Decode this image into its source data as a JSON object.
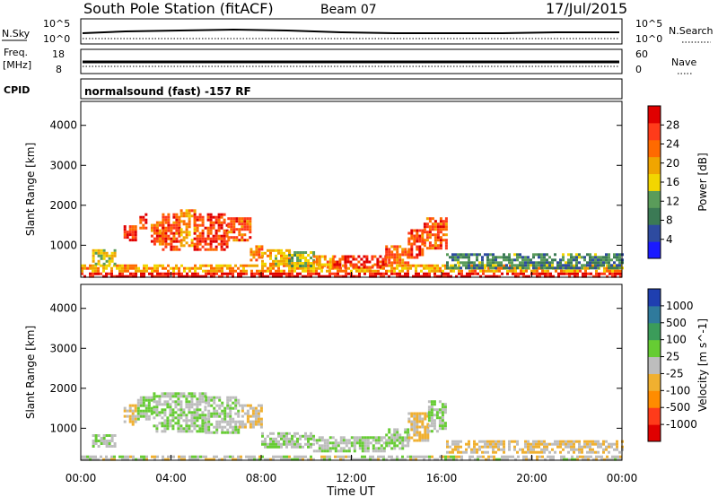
{
  "header": {
    "station": "South Pole Station (fitACF)",
    "beam": "Beam 07",
    "date": "17/Jul/2015"
  },
  "top_panels": {
    "nsky": {
      "label_left": "N.Sky",
      "label_right": "N.Search",
      "ticks_left": [
        "10^5",
        "10^0"
      ],
      "ticks_right": [
        "10^5",
        "10^0"
      ]
    },
    "freq": {
      "label_left_1": "Freq.",
      "label_left_2": "[MHz]",
      "label_right": "Nave",
      "ticks_left": [
        "18",
        "8"
      ],
      "ticks_right": [
        "60",
        "0"
      ]
    },
    "cpid": {
      "label": "CPID",
      "text": "normalsound (fast) -157 RF"
    }
  },
  "xaxis": {
    "label": "Time UT",
    "ticks": [
      "00:00",
      "04:00",
      "08:00",
      "12:00",
      "16:00",
      "20:00",
      "00:00"
    ]
  },
  "colors": {
    "power_scale": [
      "#1a1aff",
      "#2e4ba0",
      "#3b7a55",
      "#5a9c5a",
      "#f2d600",
      "#f0a500",
      "#ff6a00",
      "#ff3b1a",
      "#e00000"
    ],
    "velocity_scale": [
      "#e00000",
      "#ff3b1a",
      "#ff8c00",
      "#f0b030",
      "#bdbdbd",
      "#66cc33",
      "#3b9c5a",
      "#2f7a9c",
      "#1f3fb0"
    ]
  },
  "chart_data": [
    {
      "type": "heatmap",
      "title": "Power",
      "ylabel": "Slant Range [km]",
      "xlabel": "Time UT",
      "ylim": [
        200,
        4600
      ],
      "yticks": [
        1000,
        2000,
        3000,
        4000
      ],
      "xlim": [
        0,
        24
      ],
      "colorbar": {
        "label": "Power [dB]",
        "ticks": [
          "4",
          "8",
          "12",
          "16",
          "20",
          "24",
          "28"
        ],
        "range": [
          0,
          32
        ]
      },
      "regions": [
        {
          "t": [
            0,
            24
          ],
          "r": [
            200,
            320
          ],
          "value": 30
        },
        {
          "t": [
            0,
            24
          ],
          "r": [
            320,
            520
          ],
          "value": 20
        },
        {
          "t": [
            0.5,
            1.5
          ],
          "r": [
            520,
            900
          ],
          "value": 16
        },
        {
          "t": [
            1.9,
            2.4
          ],
          "r": [
            1100,
            1500
          ],
          "value": 28
        },
        {
          "t": [
            2.6,
            3.0
          ],
          "r": [
            1400,
            1800
          ],
          "value": 26
        },
        {
          "t": [
            3.1,
            3.6
          ],
          "r": [
            1000,
            1600
          ],
          "value": 24
        },
        {
          "t": [
            3.6,
            4.4
          ],
          "r": [
            900,
            1800
          ],
          "value": 26
        },
        {
          "t": [
            4.4,
            5.0
          ],
          "r": [
            1000,
            1900
          ],
          "value": 20
        },
        {
          "t": [
            5.0,
            6.5
          ],
          "r": [
            900,
            1800
          ],
          "value": 27
        },
        {
          "t": [
            6.5,
            7.5
          ],
          "r": [
            1100,
            1700
          ],
          "value": 25
        },
        {
          "t": [
            7.5,
            8.0
          ],
          "r": [
            600,
            1000
          ],
          "value": 22
        },
        {
          "t": [
            8.0,
            9.2
          ],
          "r": [
            500,
            900
          ],
          "value": 18
        },
        {
          "t": [
            9.2,
            10.3
          ],
          "r": [
            500,
            850
          ],
          "value": 14
        },
        {
          "t": [
            10.3,
            11.2
          ],
          "r": [
            450,
            750
          ],
          "value": 20
        },
        {
          "t": [
            11.2,
            13.5
          ],
          "r": [
            450,
            750
          ],
          "value": 28
        },
        {
          "t": [
            13.5,
            14.5
          ],
          "r": [
            500,
            1000
          ],
          "value": 24
        },
        {
          "t": [
            14.5,
            15.2
          ],
          "r": [
            700,
            1400
          ],
          "value": 26
        },
        {
          "t": [
            15.2,
            16.2
          ],
          "r": [
            900,
            1700
          ],
          "value": 25
        },
        {
          "t": [
            16.2,
            24
          ],
          "r": [
            400,
            800
          ],
          "value": 10
        }
      ]
    },
    {
      "type": "heatmap",
      "title": "Velocity",
      "ylabel": "Slant Range [km]",
      "xlabel": "Time UT",
      "ylim": [
        200,
        4600
      ],
      "yticks": [
        1000,
        2000,
        3000,
        4000
      ],
      "xlim": [
        0,
        24
      ],
      "colorbar": {
        "label": "Velocity [m s^-1]",
        "ticks": [
          "1000",
          "500",
          "100",
          "25",
          "-25",
          "-100",
          "-500",
          "-1000"
        ],
        "range": [
          -1250,
          1250
        ]
      },
      "regions": [
        {
          "t": [
            0,
            24
          ],
          "r": [
            200,
            320
          ],
          "value": 0
        },
        {
          "t": [
            0.5,
            1.5
          ],
          "r": [
            550,
            850
          ],
          "value": 80
        },
        {
          "t": [
            1.9,
            2.4
          ],
          "r": [
            1100,
            1600
          ],
          "value": -150
        },
        {
          "t": [
            2.5,
            3.2
          ],
          "r": [
            1200,
            1800
          ],
          "value": 120
        },
        {
          "t": [
            3.2,
            5.5
          ],
          "r": [
            900,
            1900
          ],
          "value": 120
        },
        {
          "t": [
            5.5,
            7.0
          ],
          "r": [
            900,
            1800
          ],
          "value": 90
        },
        {
          "t": [
            7.0,
            8.0
          ],
          "r": [
            1000,
            1600
          ],
          "value": -80
        },
        {
          "t": [
            8.0,
            10.3
          ],
          "r": [
            500,
            900
          ],
          "value": 60
        },
        {
          "t": [
            10.3,
            13.5
          ],
          "r": [
            450,
            800
          ],
          "value": 100
        },
        {
          "t": [
            13.5,
            14.5
          ],
          "r": [
            500,
            1000
          ],
          "value": 90
        },
        {
          "t": [
            14.5,
            15.4
          ],
          "r": [
            700,
            1400
          ],
          "value": -200
        },
        {
          "t": [
            15.4,
            16.2
          ],
          "r": [
            900,
            1700
          ],
          "value": 100
        },
        {
          "t": [
            16.2,
            24
          ],
          "r": [
            400,
            700
          ],
          "value": -120
        }
      ]
    }
  ]
}
